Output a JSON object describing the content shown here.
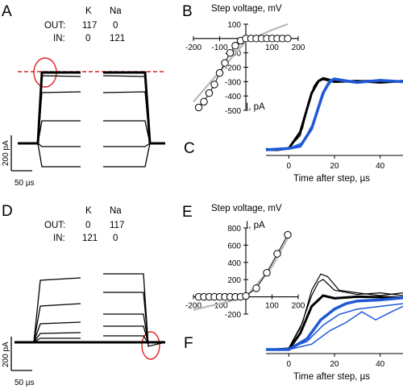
{
  "panels": {
    "A": {
      "label": "A",
      "ions": [
        "K",
        "Na"
      ],
      "rows": [
        {
          "name": "OUT:",
          "values": [
            "117",
            "0"
          ]
        },
        {
          "name": "IN:",
          "values": [
            "0",
            "121"
          ]
        }
      ],
      "scale_current": "200 pA",
      "scale_time": "50 µs"
    },
    "B": {
      "label": "B"
    },
    "C": {
      "label": "C"
    },
    "D": {
      "label": "D",
      "ions": [
        "K",
        "Na"
      ],
      "rows": [
        {
          "name": "OUT:",
          "values": [
            "0",
            "117"
          ]
        },
        {
          "name": "IN:",
          "values": [
            "121",
            "0"
          ]
        }
      ],
      "scale_current": "200 pA",
      "scale_time": "50 µs"
    },
    "E": {
      "label": "E"
    },
    "F": {
      "label": "F"
    }
  },
  "chart_data": [
    {
      "panel": "B",
      "type": "line",
      "xlabel": "Step voltage, mV",
      "ylabel": "I, pA",
      "xlim": [
        -200,
        200
      ],
      "ylim": [
        -500,
        100
      ],
      "xticks": [
        -200,
        -100,
        100,
        200
      ],
      "yticks": [
        100,
        -100,
        -200,
        -300,
        -400,
        -500
      ],
      "series": [
        {
          "x": [
            -180,
            -160,
            -140,
            -120,
            -100,
            -80,
            -60,
            -40,
            -20,
            0,
            20,
            40,
            60,
            80,
            100,
            120,
            140,
            160
          ],
          "y": [
            -480,
            -440,
            -380,
            -320,
            -240,
            -170,
            -100,
            -50,
            -15,
            0,
            0,
            0,
            0,
            0,
            0,
            0,
            0,
            0
          ]
        },
        {
          "x": [
            -200,
            -100,
            0,
            100,
            160
          ],
          "y": [
            -440,
            -230,
            -20,
            60,
            100
          ]
        }
      ]
    },
    {
      "panel": "C",
      "type": "line",
      "xlabel": "Time after step, µs",
      "xlim": [
        -10,
        50
      ],
      "xticks": [
        0,
        20,
        40
      ],
      "series": [
        {
          "x": [
            -10,
            -5,
            0,
            5,
            10,
            13,
            15,
            20,
            30,
            40,
            50
          ],
          "y": [
            0,
            0,
            0.02,
            0.25,
            0.8,
            0.97,
            1.0,
            0.96,
            0.97,
            0.95,
            0.97
          ]
        },
        {
          "x": [
            -10,
            -5,
            0,
            5,
            8,
            11,
            13,
            15,
            20,
            30,
            40,
            50
          ],
          "y": [
            0.02,
            0,
            0.03,
            0.2,
            0.6,
            0.9,
            0.98,
            1.02,
            0.98,
            0.95,
            0.97,
            0.96
          ]
        },
        {
          "x": [
            -10,
            0,
            6,
            9,
            12,
            15,
            18,
            25,
            35,
            50
          ],
          "y": [
            0,
            0.02,
            0.3,
            0.7,
            0.95,
            1.0,
            0.98,
            0.97,
            0.98,
            0.96
          ]
        },
        {
          "x": [
            -10,
            0,
            5,
            10,
            15,
            18,
            20,
            25,
            30,
            40,
            50
          ],
          "y": [
            0,
            0.02,
            0.05,
            0.3,
            0.8,
            0.97,
            1.0,
            0.97,
            0.95,
            0.98,
            0.96
          ]
        },
        {
          "x": [
            -10,
            0,
            6,
            11,
            16,
            19,
            22,
            30,
            40,
            50
          ],
          "y": [
            0.01,
            0.02,
            0.1,
            0.4,
            0.85,
            0.98,
            1.0,
            0.96,
            0.97,
            0.95
          ]
        }
      ]
    },
    {
      "panel": "E",
      "type": "line",
      "xlabel": "Step voltage, mV",
      "ylabel": "I, pA",
      "xlim": [
        -200,
        200
      ],
      "ylim": [
        -200,
        800
      ],
      "xticks": [
        -200,
        -100,
        100,
        200
      ],
      "yticks": [
        800,
        600,
        400,
        200,
        -200
      ],
      "series": [
        {
          "x": [
            -180,
            -160,
            -140,
            -120,
            -100,
            -80,
            -60,
            -40,
            -20,
            0,
            40,
            80,
            120,
            160
          ],
          "y": [
            0,
            0,
            0,
            0,
            0,
            0,
            0,
            0,
            0,
            10,
            100,
            280,
            500,
            720
          ]
        },
        {
          "x": [
            -200,
            -100,
            0,
            100,
            160
          ],
          "y": [
            -150,
            -80,
            0,
            350,
            680
          ]
        }
      ]
    },
    {
      "panel": "F",
      "type": "line",
      "xlabel": "Time after step, µs",
      "xlim": [
        -10,
        50
      ],
      "xticks": [
        0,
        20,
        40
      ],
      "series": [
        {
          "x": [
            -10,
            0,
            5,
            10,
            15,
            20,
            30,
            40,
            50
          ],
          "y": [
            0,
            0,
            0.3,
            0.8,
            1.0,
            0.95,
            0.98,
            0.97,
            0.96
          ]
        },
        {
          "x": [
            -10,
            0,
            5,
            10,
            13,
            15,
            20,
            30,
            40,
            50
          ],
          "y": [
            0,
            0.02,
            0.4,
            1.0,
            1.25,
            1.3,
            1.1,
            1.02,
            1.05,
            1.0
          ]
        },
        {
          "x": [
            -10,
            0,
            6,
            10,
            14,
            17,
            22,
            30,
            40,
            50
          ],
          "y": [
            0,
            0.03,
            0.5,
            1.1,
            1.4,
            1.35,
            1.1,
            1.05,
            1.0,
            1.05
          ]
        },
        {
          "x": [
            -10,
            0,
            8,
            14,
            20,
            25,
            30,
            40,
            50
          ],
          "y": [
            0,
            0,
            0.2,
            0.55,
            0.75,
            0.85,
            0.9,
            0.92,
            0.96
          ]
        },
        {
          "x": [
            -10,
            0,
            8,
            15,
            22,
            30,
            40,
            50
          ],
          "y": [
            0,
            0.02,
            0.15,
            0.45,
            0.65,
            0.75,
            0.8,
            0.85
          ]
        },
        {
          "x": [
            -10,
            0,
            10,
            18,
            25,
            32,
            38,
            45,
            50
          ],
          "y": [
            0,
            0,
            0.1,
            0.35,
            0.5,
            0.7,
            0.55,
            0.7,
            0.8
          ]
        }
      ]
    }
  ]
}
